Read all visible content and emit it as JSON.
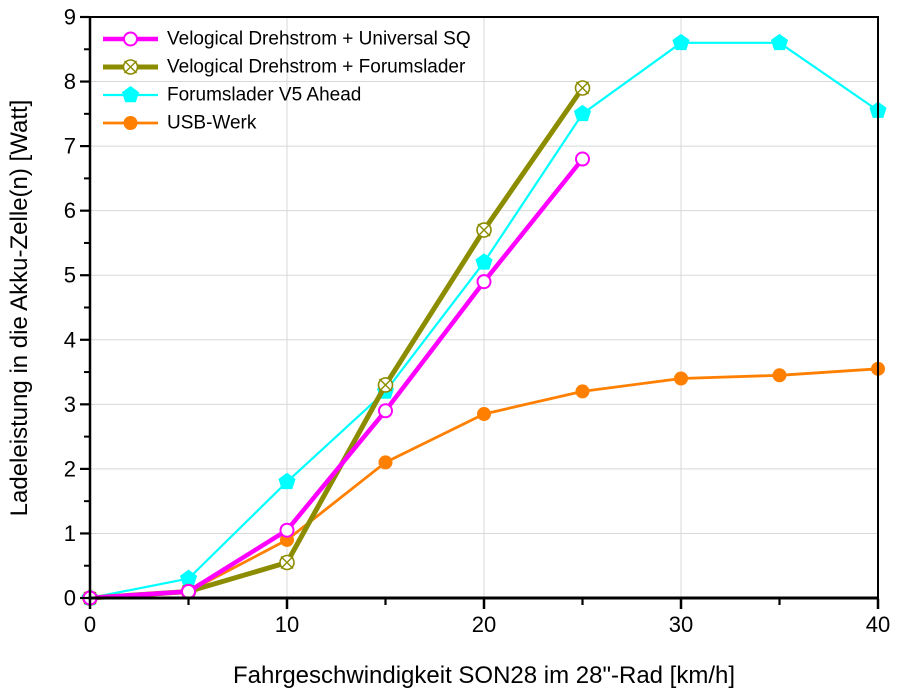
{
  "chart_data": {
    "type": "line",
    "title": "",
    "xlabel": "Fahrgeschwindigkeit SON28 im 28\"-Rad [km/h]",
    "ylabel": "Ladeleistung in die Akku-Zelle(n) [Watt]",
    "xlim": [
      0,
      40
    ],
    "ylim": [
      0,
      9
    ],
    "x_major_ticks": [
      0,
      10,
      20,
      30,
      40
    ],
    "x_minor_ticks": [
      5,
      15,
      25,
      35
    ],
    "y_major_ticks": [
      0,
      1,
      2,
      3,
      4,
      5,
      6,
      7,
      8,
      9
    ],
    "y_minor_ticks": [
      0.5,
      1.5,
      2.5,
      3.5,
      4.5,
      5.5,
      6.5,
      7.5,
      8.5
    ],
    "grid": "major-both",
    "grid_color": "#D8D8D8",
    "axis_color": "#000000",
    "background_color": "#FFFFFF",
    "legend_position": "top-left-inside",
    "series": [
      {
        "name": "Velogical Drehstrom + Universal SQ",
        "color": "#FF00FF",
        "marker": "open-circle",
        "line_width": 4.5,
        "x": [
          0,
          5,
          10,
          15,
          20,
          25
        ],
        "y": [
          0,
          0.1,
          1.05,
          2.9,
          4.9,
          6.8
        ]
      },
      {
        "name": "Velogical Drehstrom + Forumslader",
        "color": "#8C8C00",
        "marker": "circle-x",
        "line_width": 5,
        "x": [
          0,
          5,
          10,
          15,
          20,
          25
        ],
        "y": [
          0,
          0.1,
          0.55,
          3.3,
          5.7,
          7.9
        ]
      },
      {
        "name": "Forumslader V5 Ahead",
        "color": "#00FFFF",
        "marker": "pentagon",
        "line_width": 2.2,
        "x": [
          0,
          5,
          10,
          15,
          20,
          25,
          30,
          35,
          40
        ],
        "y": [
          0,
          0.3,
          1.8,
          3.2,
          5.2,
          7.5,
          8.6,
          8.6,
          7.55
        ]
      },
      {
        "name": "USB-Werk",
        "color": "#FF8000",
        "marker": "filled-circle",
        "line_width": 2.8,
        "x": [
          0,
          5,
          10,
          15,
          20,
          25,
          30,
          35,
          40
        ],
        "y": [
          0,
          0.1,
          0.9,
          2.1,
          2.85,
          3.2,
          3.4,
          3.45,
          3.55
        ]
      }
    ]
  }
}
